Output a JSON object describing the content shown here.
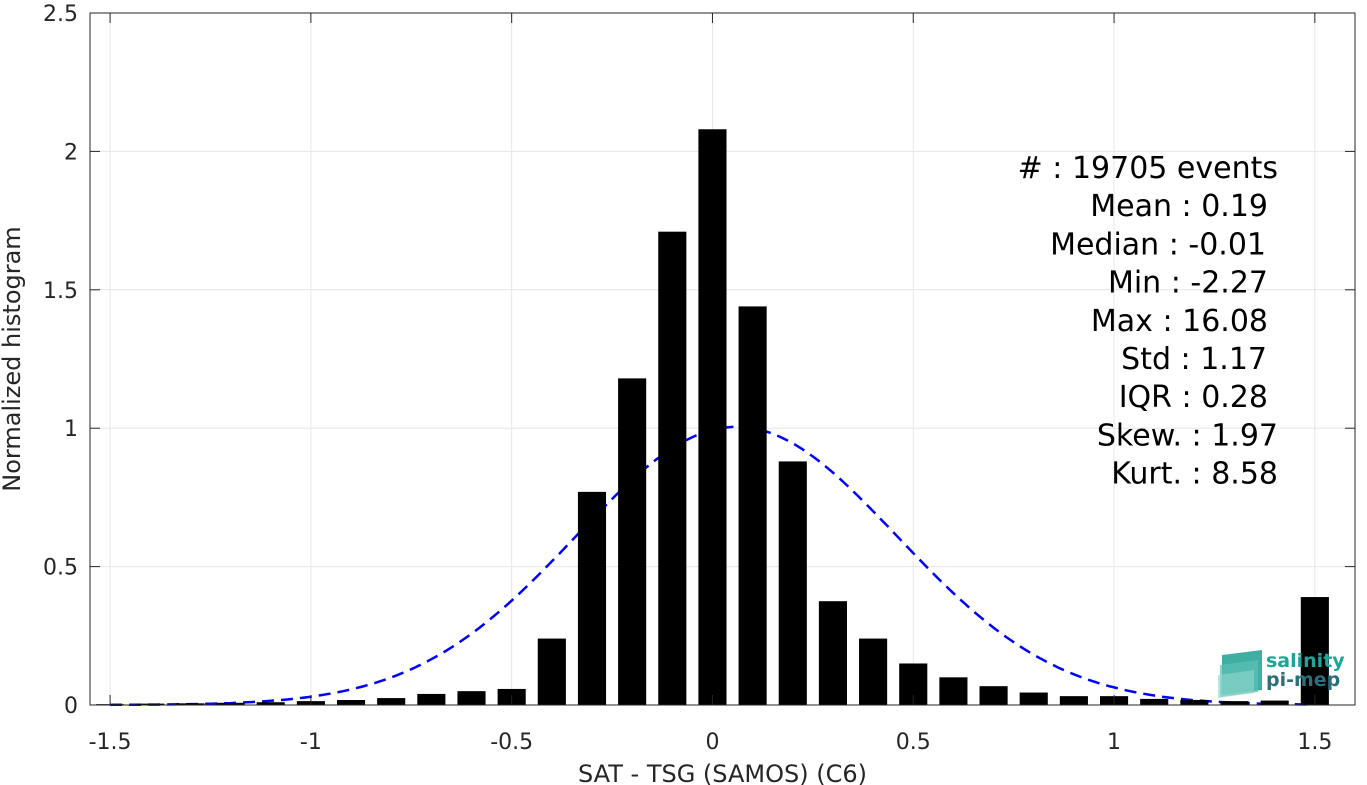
{
  "chart_data": {
    "type": "bar",
    "xlabel": "SAT - TSG (SAMOS) (C6)",
    "ylabel": "Normalized histogram",
    "xlim": [
      -1.55,
      1.6
    ],
    "ylim": [
      0,
      2.5
    ],
    "grid": true,
    "x_ticks": [
      -1.5,
      -1,
      -0.5,
      0,
      0.5,
      1,
      1.5
    ],
    "x_tick_labels": [
      "-1.5",
      "-1",
      "-0.5",
      "0",
      "0.5",
      "1",
      "1.5"
    ],
    "y_ticks": [
      0,
      0.5,
      1,
      1.5,
      2,
      2.5
    ],
    "y_tick_labels": [
      "0",
      "0.5",
      "1",
      "1.5",
      "2",
      "2.5"
    ],
    "bar_width": 0.07,
    "bars": {
      "x": [
        -1.5,
        -1.4,
        -1.3,
        -1.2,
        -1.1,
        -1.0,
        -0.9,
        -0.8,
        -0.7,
        -0.6,
        -0.5,
        -0.4,
        -0.3,
        -0.2,
        -0.1,
        0.0,
        0.1,
        0.2,
        0.3,
        0.4,
        0.5,
        0.6,
        0.7,
        0.8,
        0.9,
        1.0,
        1.1,
        1.2,
        1.3,
        1.4,
        1.5
      ],
      "values": [
        0.003,
        0.005,
        0.006,
        0.008,
        0.01,
        0.014,
        0.018,
        0.025,
        0.04,
        0.05,
        0.058,
        0.24,
        0.77,
        1.18,
        1.71,
        2.08,
        1.44,
        0.88,
        0.375,
        0.24,
        0.15,
        0.1,
        0.068,
        0.045,
        0.032,
        0.032,
        0.022,
        0.018,
        0.014,
        0.016,
        0.39
      ],
      "color": "#000000"
    },
    "fit_curve": {
      "style": "dashed",
      "color": "#0000ff",
      "mean": 0.06,
      "std": 0.4,
      "peak": 1.005
    },
    "stats_text": [
      "#  : 19705 events",
      "Mean : 0.19",
      "Median : -0.01",
      "Min : -2.27",
      "Max : 16.08",
      "Std : 1.17",
      "IQR : 0.28",
      "Skew. : 1.97",
      "Kurt. : 8.58"
    ]
  },
  "logo": {
    "line1": "salinity",
    "line2": "pi-mep",
    "color_top": "#1aa79a",
    "color_bottom": "#2c6e7a"
  }
}
